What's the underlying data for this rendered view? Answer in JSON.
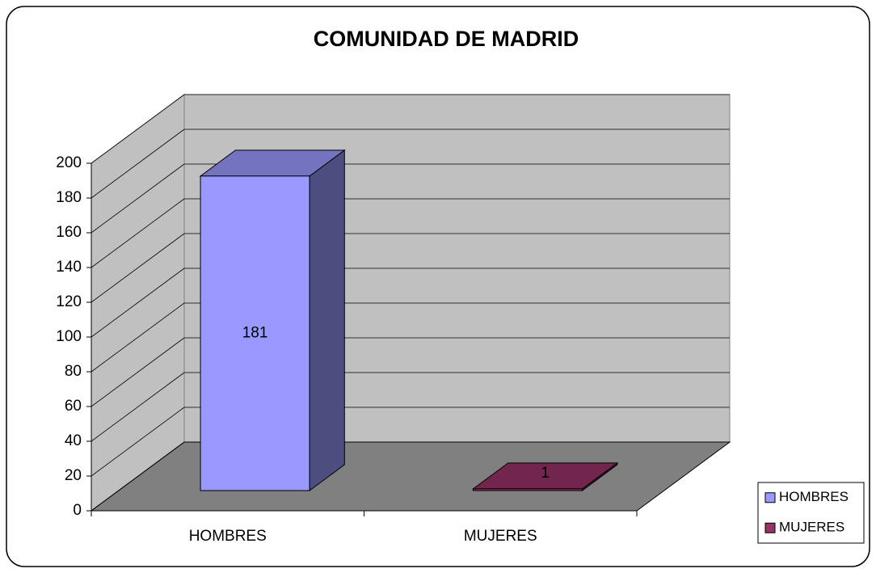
{
  "chart_data": {
    "type": "bar3d",
    "title": "COMUNIDAD DE MADRID",
    "categories": [
      "HOMBRES",
      "MUJERES"
    ],
    "values": [
      181,
      1
    ],
    "colors": [
      "#9999ff",
      "#993366"
    ],
    "ylim": [
      0,
      200
    ],
    "yticks": [
      0,
      20,
      40,
      60,
      80,
      100,
      120,
      140,
      160,
      180,
      200
    ],
    "grid": true,
    "legend": "right"
  }
}
